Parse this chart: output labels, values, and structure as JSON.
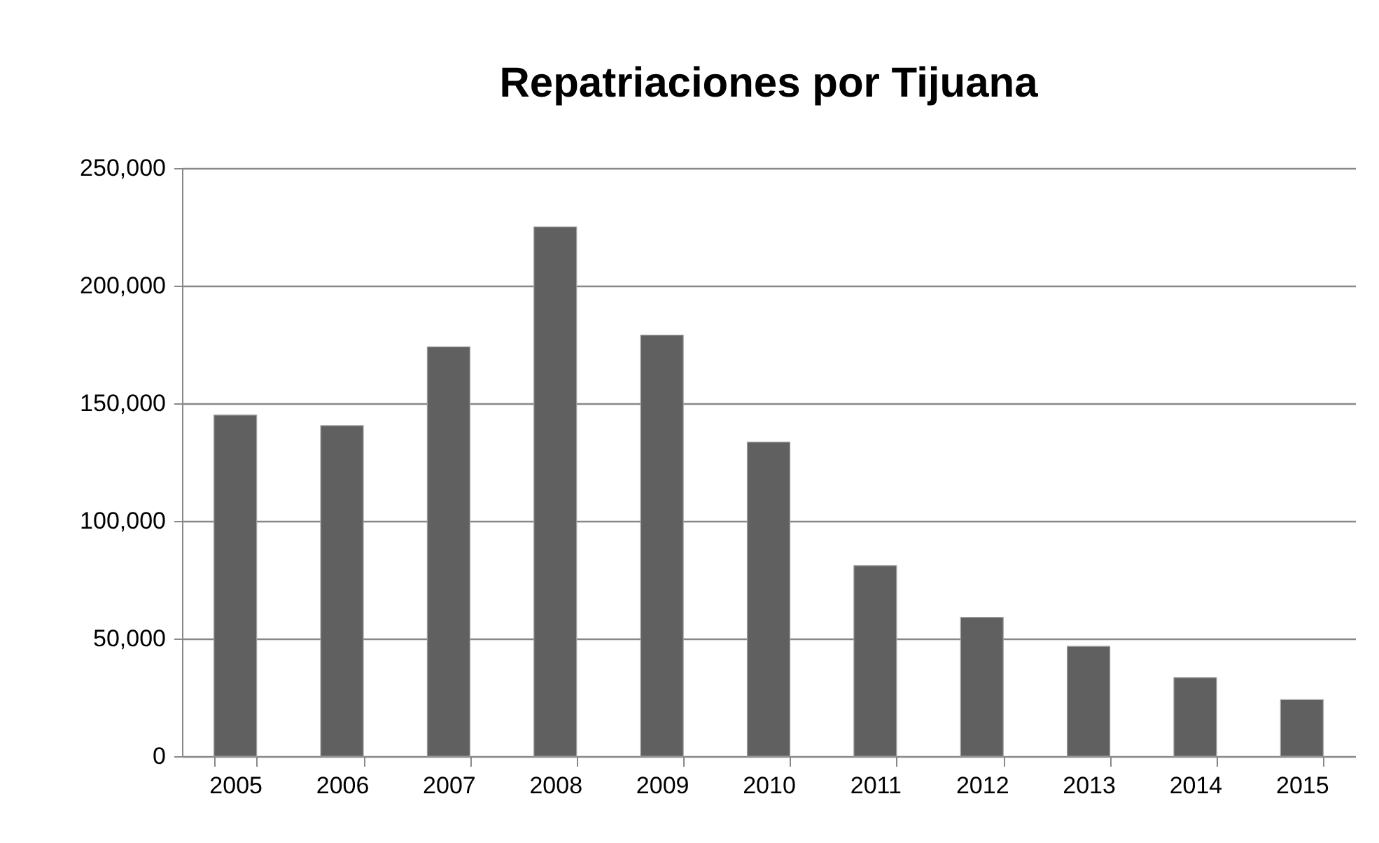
{
  "chart_data": {
    "type": "bar",
    "title": "Repatriaciones por Tijuana",
    "categories": [
      "2005",
      "2006",
      "2007",
      "2008",
      "2009",
      "2010",
      "2011",
      "2012",
      "2013",
      "2014",
      "2015"
    ],
    "values": [
      145000,
      140500,
      174000,
      225000,
      179000,
      133500,
      81000,
      59000,
      46700,
      33400,
      24000
    ],
    "color": "#606060",
    "ylim": [
      0,
      250000
    ],
    "yticks": [
      0,
      {
        "value": 50000,
        "label": "50,000"
      },
      {
        "value": 100000,
        "label": "100,000"
      },
      {
        "value": 150000,
        "label": "150,000"
      },
      {
        "value": 200000,
        "label": "200,000"
      },
      {
        "value": 250000,
        "label": "250,000"
      }
    ],
    "grid": "y"
  }
}
